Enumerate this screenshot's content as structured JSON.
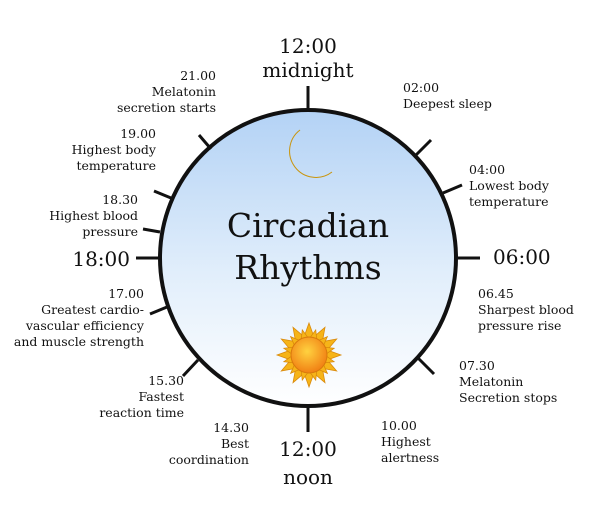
{
  "title": {
    "line1": "Circadian",
    "line2": "Rhythms"
  },
  "axis_labels": {
    "top": [
      "12:00",
      "midnight"
    ],
    "bottom": [
      "12:00",
      "noon"
    ],
    "left": "18:00",
    "right": "06:00"
  },
  "events": [
    {
      "id": "e0200",
      "lines": [
        "02:00",
        "Deepest sleep"
      ]
    },
    {
      "id": "e0400",
      "lines": [
        "04:00",
        "Lowest body",
        "temperature"
      ]
    },
    {
      "id": "e0645",
      "lines": [
        "06.45",
        "Sharpest blood",
        "pressure rise"
      ]
    },
    {
      "id": "e0730",
      "lines": [
        "07.30",
        "Melatonin",
        "Secretion stops"
      ]
    },
    {
      "id": "e1000",
      "lines": [
        "10.00",
        "Highest",
        "alertness"
      ]
    },
    {
      "id": "e1430",
      "lines": [
        "14.30",
        "Best",
        "coordination"
      ]
    },
    {
      "id": "e1530",
      "lines": [
        "15.30",
        "Fastest",
        "reaction time"
      ]
    },
    {
      "id": "e1700",
      "lines": [
        "17.00",
        "Greatest cardio-",
        "vascular efficiency",
        "and muscle strength"
      ]
    },
    {
      "id": "e1830",
      "lines": [
        "18.30",
        "Highest blood",
        "pressure"
      ]
    },
    {
      "id": "e1900",
      "lines": [
        "19.00",
        "Highest body",
        "temperature"
      ]
    },
    {
      "id": "e2100",
      "lines": [
        "21.00",
        "Melatonin",
        "secretion starts"
      ]
    }
  ],
  "icons": {
    "top": "moon-icon",
    "bottom": "sun-icon"
  },
  "colors": {
    "circle_top": "#b3d2f5",
    "circle_bottom": "#ffffff",
    "outline": "#111111",
    "moon": "#f2c419",
    "sun": "#f6b418",
    "sun_core": "#f07a10"
  }
}
